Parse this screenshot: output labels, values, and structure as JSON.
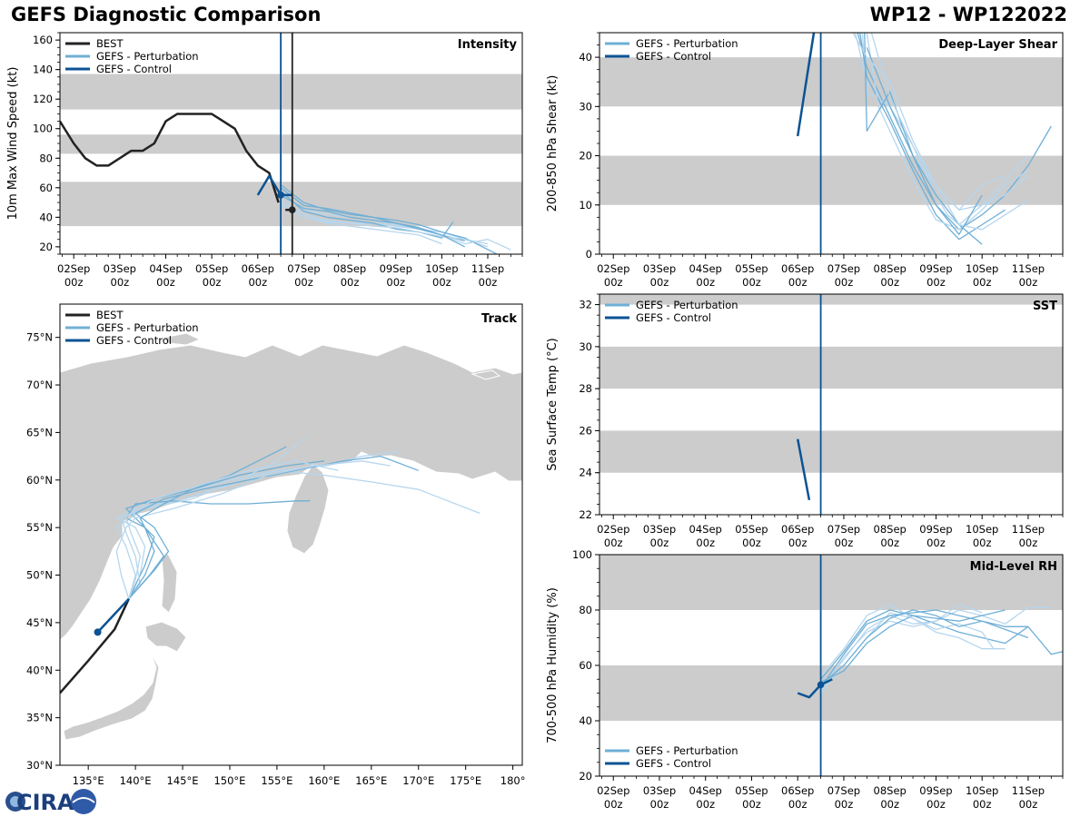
{
  "header": {
    "title": "GEFS Diagnostic Comparison",
    "storm_id": "WP12 - WP122022"
  },
  "logo": {
    "text": "CIRA"
  },
  "colors": {
    "best": "#222222",
    "perturbation": "#6fafd6",
    "perturbation_light": "#b6d6ee",
    "control": "#0b5394",
    "band": "#cccccc"
  },
  "time_ticks": [
    {
      "label": "02Sep",
      "sub": "00z"
    },
    {
      "label": "03Sep",
      "sub": "00z"
    },
    {
      "label": "04Sep",
      "sub": "00z"
    },
    {
      "label": "05Sep",
      "sub": "00z"
    },
    {
      "label": "06Sep",
      "sub": "00z"
    },
    {
      "label": "07Sep",
      "sub": "00z"
    },
    {
      "label": "08Sep",
      "sub": "00z"
    },
    {
      "label": "09Sep",
      "sub": "00z"
    },
    {
      "label": "10Sep",
      "sub": "00z"
    },
    {
      "label": "11Sep",
      "sub": "00z"
    }
  ],
  "legend_labels": {
    "best": "BEST",
    "perturbation": "GEFS - Perturbation",
    "control": "GEFS - Control"
  },
  "chart_data": [
    {
      "id": "intensity",
      "type": "line",
      "title": "Intensity",
      "ylabel": "10m Max Wind Speed (kt)",
      "xlim": [
        -0.3,
        9.75
      ],
      "ylim": [
        15,
        165
      ],
      "yticks": [
        20,
        40,
        60,
        80,
        100,
        120,
        140,
        160
      ],
      "bands": [
        [
          34,
          64
        ],
        [
          83,
          96
        ],
        [
          113,
          137
        ]
      ],
      "vlines": [
        {
          "x": 4.5,
          "series": "control"
        },
        {
          "x": 4.75,
          "series": "best"
        }
      ],
      "best": {
        "x": [
          -0.3,
          0,
          0.25,
          0.5,
          0.75,
          1,
          1.25,
          1.5,
          1.75,
          2,
          2.25,
          2.5,
          2.75,
          3,
          3.25,
          3.5,
          3.75,
          4,
          4.25,
          4.35,
          4.45
        ],
        "y": [
          105,
          90,
          80,
          75,
          75,
          80,
          85,
          85,
          90,
          105,
          110,
          110,
          110,
          110,
          105,
          100,
          85,
          75,
          70,
          60,
          50
        ]
      },
      "best_marker": {
        "x": 4.75,
        "y": 45
      },
      "best_tail": {
        "x": [
          4.6,
          4.75
        ],
        "y": [
          45,
          45
        ]
      },
      "control": {
        "x": [
          4,
          4.25,
          4.5,
          4.75
        ],
        "y": [
          55,
          68,
          55,
          55
        ]
      },
      "control_marker": {
        "x": 4.5,
        "y": 55
      },
      "perturbations": [
        {
          "x": [
            4.5,
            5,
            5.5,
            6,
            6.5,
            7,
            7.5,
            8,
            8.5,
            9
          ],
          "y": [
            55,
            45,
            42,
            40,
            38,
            35,
            32,
            30,
            25,
            20
          ]
        },
        {
          "x": [
            4.5,
            5,
            5.5,
            6,
            6.5,
            7,
            7.5,
            8,
            8.5,
            9.2
          ],
          "y": [
            60,
            48,
            46,
            43,
            40,
            38,
            35,
            30,
            26,
            15
          ]
        },
        {
          "x": [
            4.5,
            5,
            5.5,
            6,
            6.5,
            7,
            7.5,
            8,
            8.5,
            9,
            9.5
          ],
          "y": [
            52,
            42,
            38,
            36,
            36,
            34,
            32,
            28,
            22,
            25,
            18
          ]
        },
        {
          "x": [
            4.5,
            5,
            5.5,
            6,
            6.5,
            7,
            7.5,
            8,
            8.25
          ],
          "y": [
            58,
            44,
            40,
            38,
            36,
            32,
            30,
            26,
            37
          ]
        },
        {
          "x": [
            4.5,
            5,
            5.5,
            6,
            6.5,
            7,
            7.5,
            8
          ],
          "y": [
            50,
            40,
            36,
            34,
            32,
            30,
            28,
            22
          ]
        },
        {
          "x": [
            4.5,
            5,
            5.5,
            6,
            6.5,
            7,
            7.5,
            8,
            8.5
          ],
          "y": [
            55,
            46,
            44,
            40,
            38,
            36,
            33,
            28,
            24
          ]
        },
        {
          "x": [
            4.5,
            5,
            5.5,
            6,
            6.5,
            7,
            7.5,
            8,
            8.5,
            9
          ],
          "y": [
            48,
            40,
            37,
            36,
            34,
            33,
            30,
            27,
            25,
            22
          ]
        },
        {
          "x": [
            4.5,
            5,
            5.5,
            6,
            6.5,
            7,
            7.5,
            8,
            8.5
          ],
          "y": [
            62,
            50,
            45,
            42,
            40,
            36,
            32,
            28,
            20
          ]
        }
      ]
    },
    {
      "id": "shear",
      "type": "line",
      "title": "Deep-Layer Shear",
      "ylabel": "200-850 hPa Shear (kt)",
      "xlim": [
        -0.3,
        9.75
      ],
      "ylim": [
        0,
        45
      ],
      "yticks": [
        0,
        10,
        20,
        30,
        40
      ],
      "bands": [
        [
          10,
          20
        ],
        [
          30,
          40
        ]
      ],
      "vlines": [
        {
          "x": 4.5,
          "series": "control"
        }
      ],
      "control": {
        "x": [
          4,
          4.25,
          4.35
        ],
        "y": [
          24,
          39,
          45
        ]
      },
      "perturbations": [
        {
          "x": [
            5.25,
            5.5,
            6,
            6.5,
            7,
            7.25,
            7.5,
            8,
            8.5,
            9
          ],
          "y": [
            45,
            35,
            30,
            22,
            12,
            8,
            6,
            10,
            15,
            20
          ]
        },
        {
          "x": [
            5.3,
            5.5,
            6,
            6.5,
            7,
            7.5,
            8,
            8.5,
            9,
            9.5
          ],
          "y": [
            45,
            38,
            28,
            18,
            10,
            5,
            8,
            12,
            18,
            26
          ]
        },
        {
          "x": [
            5.4,
            5.5,
            6,
            6.5,
            7,
            7.5,
            8,
            8.5,
            9
          ],
          "y": [
            45,
            33,
            30,
            20,
            14,
            9,
            10,
            12,
            16
          ]
        },
        {
          "x": [
            5.35,
            5.5,
            6,
            6.5,
            7,
            7.5,
            8,
            8.5
          ],
          "y": [
            45,
            36,
            27,
            17,
            8,
            3,
            6,
            9
          ]
        },
        {
          "x": [
            5.5,
            5.75,
            6,
            6.5,
            7,
            7.5,
            8,
            8.5,
            9
          ],
          "y": [
            45,
            30,
            25,
            15,
            7,
            5,
            9,
            14,
            17
          ]
        },
        {
          "x": [
            5.45,
            5.5,
            6,
            6.5,
            7,
            7.5,
            8
          ],
          "y": [
            45,
            25,
            33,
            20,
            12,
            6,
            2
          ]
        },
        {
          "x": [
            5.6,
            6,
            6.5,
            7,
            7.5,
            8,
            8.5,
            9
          ],
          "y": [
            45,
            32,
            22,
            14,
            6,
            5,
            8,
            11
          ]
        },
        {
          "x": [
            5.5,
            6,
            6.5,
            7,
            7.5,
            8
          ],
          "y": [
            42,
            30,
            20,
            10,
            4,
            12
          ]
        },
        {
          "x": [
            5.2,
            5.5,
            6,
            6.5,
            7,
            7.5,
            8,
            8.5
          ],
          "y": [
            45,
            40,
            35,
            23,
            14,
            9,
            14,
            16
          ]
        }
      ]
    },
    {
      "id": "sst",
      "type": "line",
      "title": "SST",
      "ylabel": "Sea Surface Temp (°C)",
      "xlim": [
        -0.3,
        9.75
      ],
      "ylim": [
        22,
        32.5
      ],
      "yticks": [
        22,
        24,
        26,
        28,
        30,
        32
      ],
      "bands": [
        [
          24,
          26
        ],
        [
          28,
          30
        ],
        [
          32,
          32.5
        ]
      ],
      "vlines": [
        {
          "x": 4.5,
          "series": "control"
        }
      ],
      "control": {
        "x": [
          4,
          4.25
        ],
        "y": [
          25.6,
          22.7
        ]
      },
      "perturbations": []
    },
    {
      "id": "rh",
      "type": "line",
      "title": "Mid-Level RH",
      "ylabel": "700-500 hPa Humidity (%)",
      "xlim": [
        -0.3,
        9.75
      ],
      "ylim": [
        20,
        100
      ],
      "yticks": [
        20,
        40,
        60,
        80,
        100
      ],
      "bands": [
        [
          40,
          60
        ],
        [
          80,
          100
        ]
      ],
      "vlines": [
        {
          "x": 4.5,
          "series": "control"
        }
      ],
      "control": {
        "x": [
          4,
          4.25,
          4.5,
          4.75
        ],
        "y": [
          50,
          48.5,
          53,
          55
        ]
      },
      "control_marker": {
        "x": 4.5,
        "y": 53
      },
      "perturbations": [
        {
          "x": [
            4.5,
            5,
            5.5,
            6,
            6.5,
            7,
            7.5,
            8,
            8.5,
            9,
            9.5
          ],
          "y": [
            53,
            62,
            73,
            78,
            75,
            76,
            80,
            78,
            75,
            81,
            81
          ]
        },
        {
          "x": [
            4.5,
            5,
            5.5,
            6,
            6.5,
            7,
            7.5,
            8,
            8.5,
            9
          ],
          "y": [
            55,
            65,
            76,
            80,
            78,
            75,
            72,
            70,
            68,
            74
          ]
        },
        {
          "x": [
            4.5,
            5,
            5.5,
            6,
            6.5,
            7,
            7.5,
            8,
            8.5
          ],
          "y": [
            50,
            60,
            70,
            79,
            77,
            72,
            70,
            66,
            66
          ]
        },
        {
          "x": [
            4.5,
            5,
            5.5,
            6,
            6.5,
            7,
            7.5,
            8,
            8.5,
            9,
            9.5,
            9.75
          ],
          "y": [
            52,
            64,
            75,
            78,
            79,
            80,
            78,
            76,
            74,
            74,
            64,
            65
          ]
        },
        {
          "x": [
            4.5,
            5,
            5.5,
            6,
            6.5,
            7,
            7.5,
            8
          ],
          "y": [
            51,
            63,
            72,
            76,
            74,
            76,
            82,
            79
          ]
        },
        {
          "x": [
            4.5,
            5,
            5.5,
            6,
            6.5,
            7,
            7.5,
            8,
            8.5
          ],
          "y": [
            54,
            58,
            68,
            74,
            78,
            77,
            76,
            78,
            80
          ]
        },
        {
          "x": [
            4.5,
            5,
            5.5,
            6,
            6.5,
            7,
            7.5,
            8,
            8.25
          ],
          "y": [
            56,
            66,
            78,
            82,
            77,
            73,
            75,
            72,
            66
          ]
        },
        {
          "x": [
            4.5,
            5,
            5.5,
            6,
            6.5,
            7,
            7.5,
            8,
            8.5,
            9
          ],
          "y": [
            53,
            60,
            70,
            77,
            80,
            78,
            74,
            76,
            73,
            70
          ]
        }
      ]
    },
    {
      "id": "track",
      "type": "line",
      "title": "Track",
      "xlim": [
        132,
        181
      ],
      "ylim": [
        30,
        78.5
      ],
      "xticks": [
        135,
        140,
        145,
        150,
        155,
        160,
        165,
        170,
        175,
        180
      ],
      "xtick_labels": [
        "135°E",
        "140°E",
        "145°E",
        "150°E",
        "155°E",
        "160°E",
        "165°E",
        "170°E",
        "175°E",
        "180°"
      ],
      "yticks": [
        30,
        35,
        40,
        45,
        50,
        55,
        60,
        65,
        70,
        75
      ],
      "ytick_labels": [
        "30°N",
        "35°N",
        "40°N",
        "45°N",
        "50°N",
        "55°N",
        "60°N",
        "65°N",
        "70°N",
        "75°N"
      ],
      "best": {
        "x": [
          132,
          135,
          137.8,
          139.3
        ],
        "y": [
          37.6,
          41,
          44.3,
          47.5
        ]
      },
      "control": {
        "x": [
          136,
          139.3
        ],
        "y": [
          44,
          47.5
        ]
      },
      "control_marker": {
        "x": 136,
        "y": 44
      },
      "perturbations": [
        {
          "x": [
            139.3,
            140.5,
            141,
            140,
            138,
            140,
            145,
            150,
            155,
            160,
            164,
            168
          ],
          "y": [
            47.5,
            50,
            53,
            55,
            56,
            57,
            58,
            59.5,
            61,
            61.5,
            62.5,
            63
          ]
        },
        {
          "x": [
            139.3,
            141,
            142,
            140,
            139,
            142,
            146,
            151,
            156,
            160
          ],
          "y": [
            47.5,
            51,
            54,
            56,
            57,
            58,
            59,
            60.5,
            61.5,
            62
          ]
        },
        {
          "x": [
            139.3,
            140,
            139,
            138,
            141,
            145,
            150,
            155,
            160,
            165,
            170,
            176.5
          ],
          "y": [
            47.5,
            50,
            53,
            55,
            57,
            58.5,
            60,
            61,
            60.5,
            59.8,
            59,
            56.5
          ]
        },
        {
          "x": [
            139.3,
            141.5,
            143,
            141,
            139,
            140,
            144,
            148,
            152,
            157,
            158.5
          ],
          "y": [
            47.5,
            50,
            52,
            55,
            56,
            57.5,
            57.8,
            57.5,
            57.5,
            57.8,
            57.8
          ]
        },
        {
          "x": [
            139.3,
            140.5,
            140,
            139,
            138.5,
            141,
            146,
            151,
            155,
            158
          ],
          "y": [
            47.5,
            49,
            52,
            54.5,
            56,
            57,
            58,
            60,
            62,
            64.5
          ]
        },
        {
          "x": [
            139.3,
            142,
            143.5,
            142,
            140,
            143,
            147,
            152,
            157,
            162,
            166,
            170
          ],
          "y": [
            47.5,
            50.5,
            52.5,
            55,
            56.5,
            58,
            59,
            60,
            61,
            62,
            62.5,
            61
          ]
        },
        {
          "x": [
            139.3,
            138.5,
            138,
            139,
            140,
            144,
            149,
            154,
            159,
            164,
            167
          ],
          "y": [
            47.5,
            50,
            52.5,
            55,
            56,
            57,
            58.5,
            60.5,
            61.5,
            62,
            61.5
          ]
        },
        {
          "x": [
            139.3,
            141,
            142,
            141,
            140.5,
            143,
            146,
            150,
            153,
            156
          ],
          "y": [
            47.5,
            50,
            52.5,
            55,
            56,
            57.5,
            59,
            60.5,
            62,
            63.5
          ]
        },
        {
          "x": [
            139.3,
            140,
            140.5,
            139.5,
            139,
            142,
            147,
            152,
            157,
            161.5
          ],
          "y": [
            47.5,
            49.5,
            52,
            54.5,
            56.2,
            58,
            59.5,
            61,
            62,
            61
          ]
        }
      ]
    }
  ]
}
